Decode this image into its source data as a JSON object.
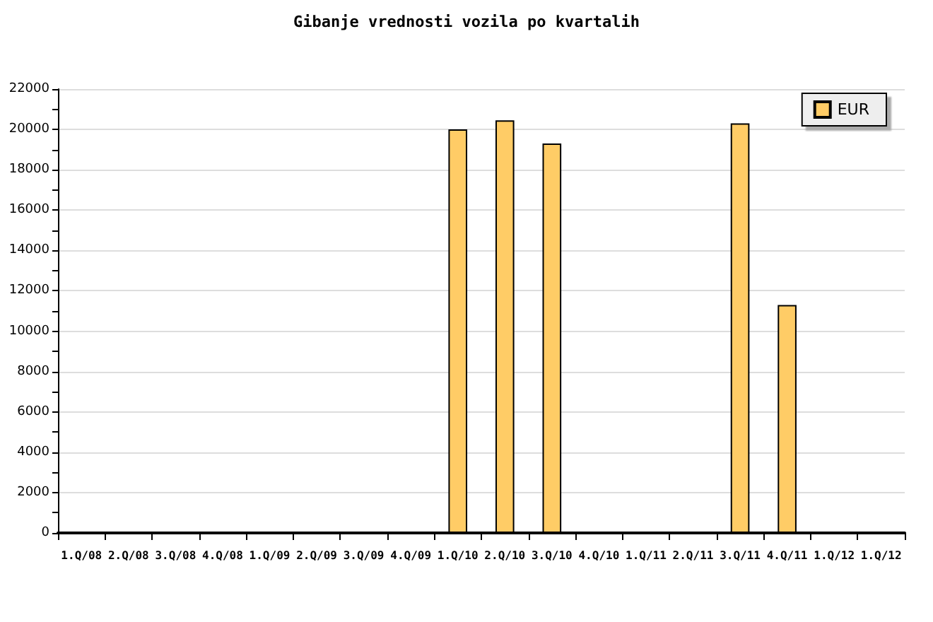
{
  "chart_data": {
    "type": "bar",
    "title": "Gibanje vrednosti vozila po kvartalih",
    "categories": [
      "1.Q/08",
      "2.Q/08",
      "3.Q/08",
      "4.Q/08",
      "1.Q/09",
      "2.Q/09",
      "3.Q/09",
      "4.Q/09",
      "1.Q/10",
      "2.Q/10",
      "3.Q/10",
      "4.Q/10",
      "1.Q/11",
      "2.Q/11",
      "3.Q/11",
      "4.Q/11",
      "1.Q/12",
      "1.Q/12"
    ],
    "series": [
      {
        "name": "EUR",
        "color": "#ffcc66",
        "values": [
          null,
          null,
          null,
          null,
          null,
          null,
          null,
          null,
          20000,
          20450,
          19300,
          null,
          null,
          null,
          20300,
          11300,
          null,
          null
        ]
      }
    ],
    "ylim": [
      0,
      22000
    ],
    "yticks": [
      0,
      {
        "value": 1000,
        "label": null
      },
      2000,
      {
        "value": 3000,
        "label": null
      },
      4000,
      {
        "value": 5000,
        "label": null
      },
      6000,
      {
        "value": 7000,
        "label": null
      },
      8000,
      {
        "value": 9000,
        "label": null
      },
      10000,
      {
        "value": 11000,
        "label": null
      },
      12000,
      {
        "value": 13000,
        "label": null
      },
      14000,
      {
        "value": 15000,
        "label": null
      },
      16000,
      {
        "value": 17000,
        "label": null
      },
      18000,
      {
        "value": 19000,
        "label": null
      },
      20000,
      {
        "value": 21000,
        "label": null
      },
      22000
    ],
    "grid": "y",
    "legend": "top right"
  }
}
